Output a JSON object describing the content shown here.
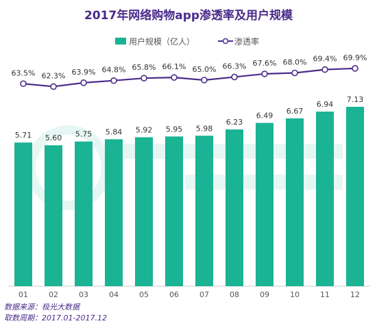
{
  "chart_data": {
    "type": "bar",
    "title": "2017年网络购物app渗透率及用户规模",
    "categories": [
      "01",
      "02",
      "03",
      "04",
      "05",
      "06",
      "07",
      "08",
      "09",
      "10",
      "11",
      "12"
    ],
    "series": [
      {
        "name": "用户规模（亿人）",
        "type": "bar",
        "color": "#1ab394",
        "values": [
          5.71,
          5.6,
          5.75,
          5.84,
          5.92,
          5.95,
          5.98,
          6.23,
          6.49,
          6.67,
          6.94,
          7.13
        ],
        "labels": [
          "5.71",
          "5.60",
          "5.75",
          "5.84",
          "5.92",
          "5.95",
          "5.98",
          "6.23",
          "6.49",
          "6.67",
          "6.94",
          "7.13"
        ]
      },
      {
        "name": "渗透率",
        "type": "line",
        "color": "#4a2a8a",
        "unit": "%",
        "values": [
          63.5,
          62.3,
          63.9,
          64.8,
          65.8,
          66.1,
          65.0,
          66.3,
          67.6,
          68.0,
          69.4,
          69.9
        ],
        "labels": [
          "63.5%",
          "62.3%",
          "63.9%",
          "64.8%",
          "65.8%",
          "66.1%",
          "65.0%",
          "66.3%",
          "67.6%",
          "68.0%",
          "69.4%",
          "69.9%"
        ]
      }
    ],
    "ylim_bar": [
      0,
      7.13
    ],
    "ylim_line": [
      55,
      75
    ],
    "grid": false,
    "legend": "top-center"
  },
  "footer": {
    "source": "数据来源：极光大数据",
    "period": "取数周期：2017.01-2017.12"
  },
  "colors": {
    "bar": "#1ab394",
    "line": "#4a2a8a",
    "title": "#4a2a8a"
  }
}
